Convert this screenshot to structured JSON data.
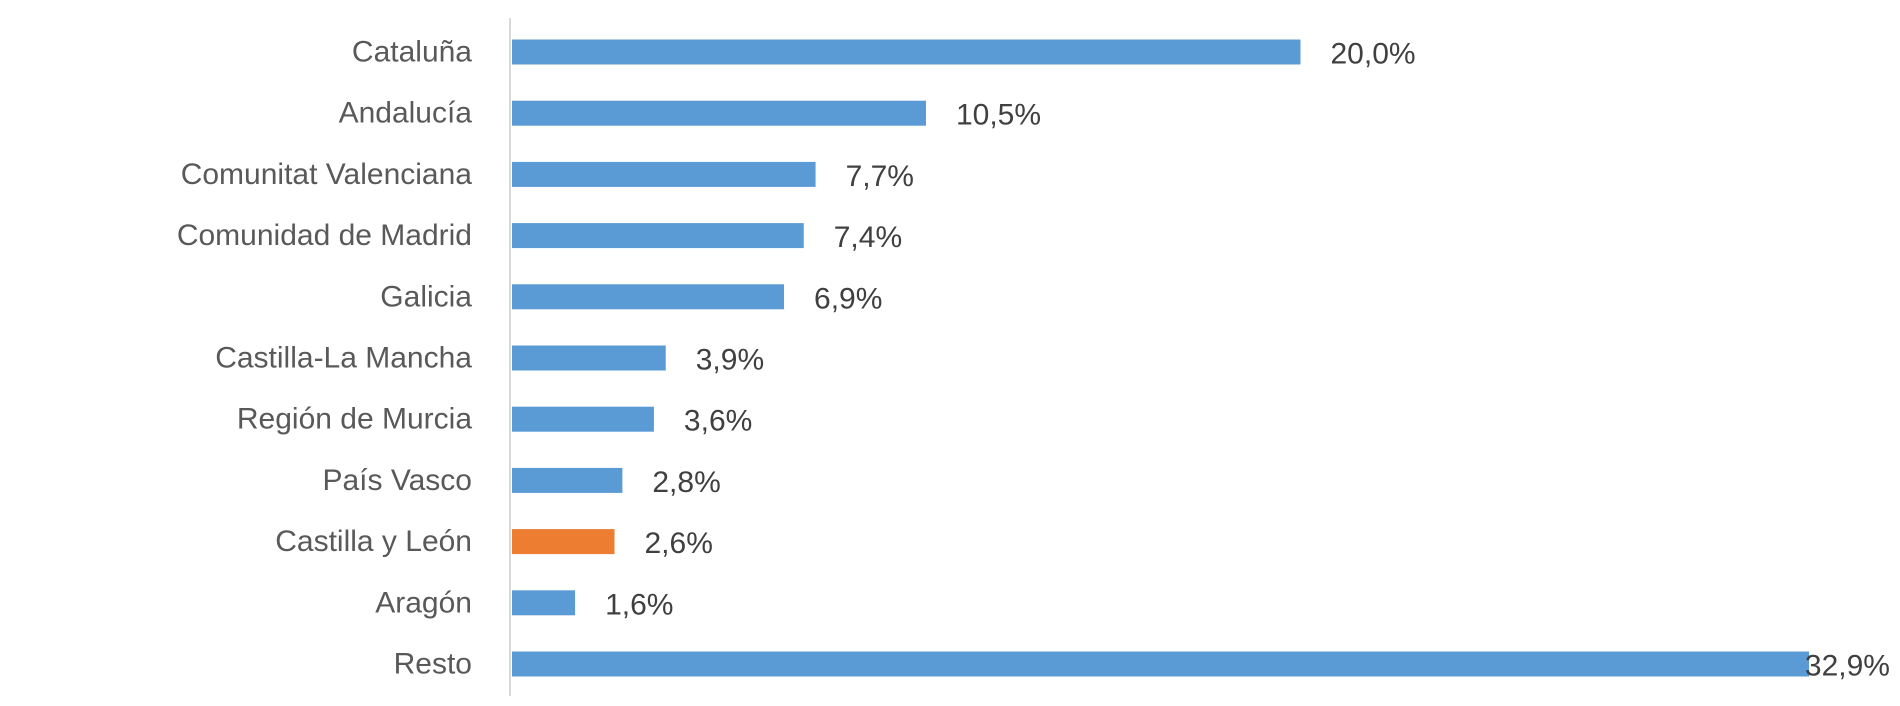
{
  "chart_data": {
    "type": "bar",
    "orientation": "horizontal",
    "title": "",
    "xlabel": "",
    "ylabel": "",
    "grid": false,
    "legend": "none",
    "categories": [
      "Cataluña",
      "Andalucía",
      "Comunitat Valenciana",
      "Comunidad de Madrid",
      "Galicia",
      "Castilla-La Mancha",
      "Región de Murcia",
      "País Vasco",
      "Castilla y León",
      "Aragón",
      "Resto"
    ],
    "values": [
      20.0,
      10.5,
      7.7,
      7.4,
      6.9,
      3.9,
      3.6,
      2.8,
      2.6,
      1.6,
      32.9
    ],
    "value_labels": [
      "20,0%",
      "10,5%",
      "7,7%",
      "7,4%",
      "6,9%",
      "3,9%",
      "3,6%",
      "2,8%",
      "2,6%",
      "1,6%",
      "32,9%"
    ],
    "xlim": [
      0,
      33
    ],
    "colors": {
      "default": "#5B9BD5",
      "highlight": "#ED7D31",
      "axis": "#D9D9D9"
    },
    "highlight_category": "Castilla y León"
  }
}
